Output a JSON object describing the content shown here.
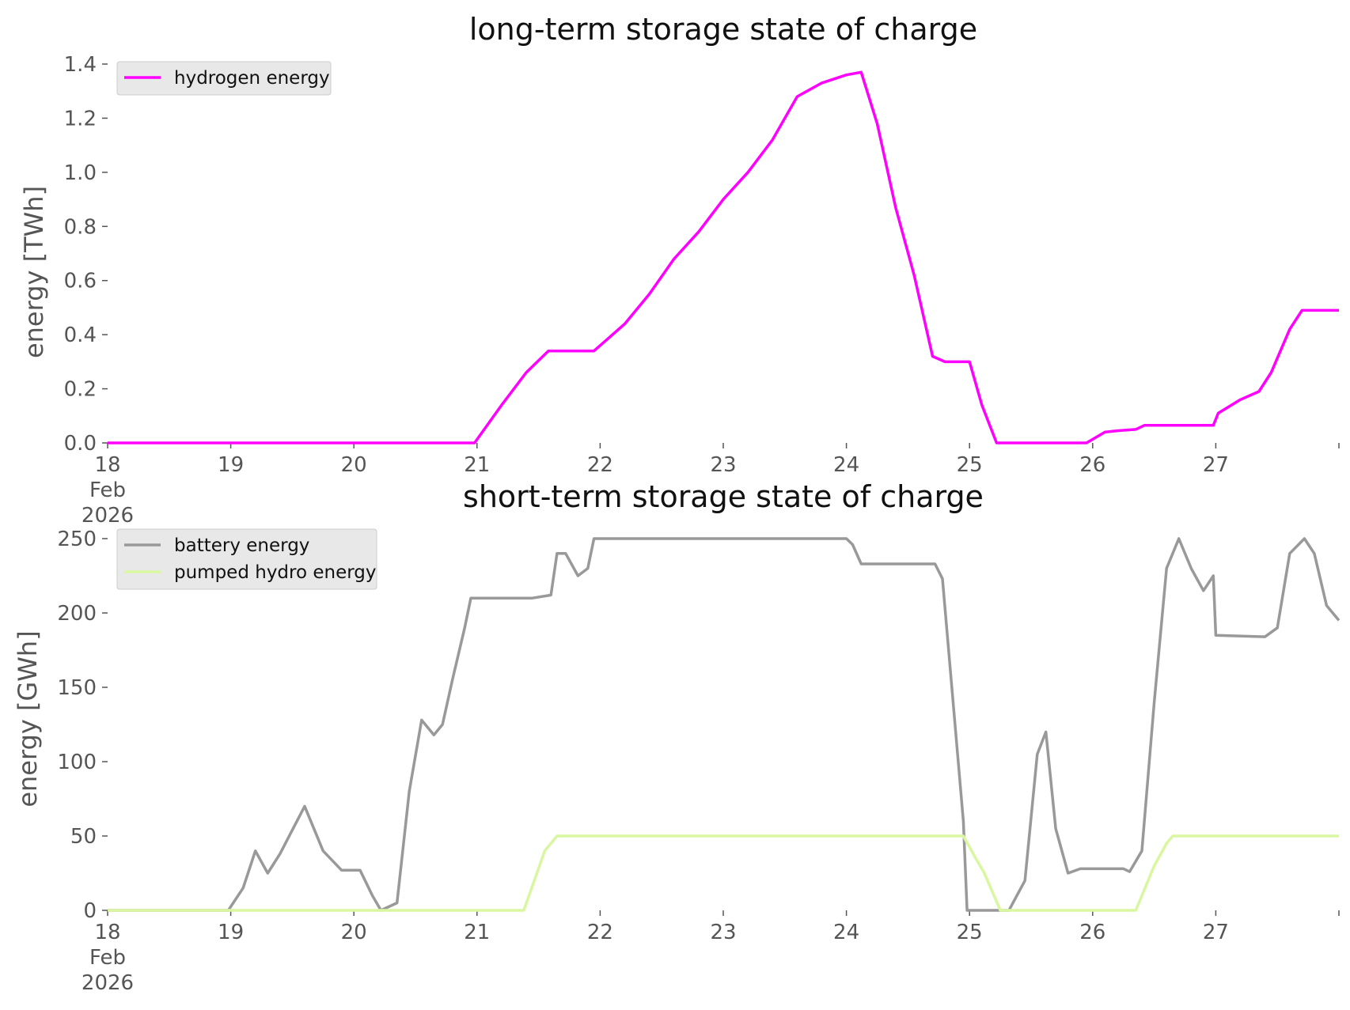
{
  "chart_data": [
    {
      "type": "line",
      "title": "long-term storage state of charge",
      "ylabel": "energy [TWh]",
      "xlabel": "",
      "xlim": [
        18,
        28
      ],
      "ylim": [
        0,
        1.4
      ],
      "x_tick_labels": [
        "18\nFeb\n2026",
        "19",
        "20",
        "21",
        "22",
        "23",
        "24",
        "25",
        "26",
        "27"
      ],
      "y_tick_labels": [
        "0.0",
        "0.2",
        "0.4",
        "0.6",
        "0.8",
        "1.0",
        "1.2",
        "1.4"
      ],
      "legend_position": "top-left",
      "series": [
        {
          "name": "hydrogen energy",
          "color": "#ff00ff",
          "x": [
            18,
            20.98,
            21.2,
            21.4,
            21.58,
            21.95,
            22.2,
            22.4,
            22.6,
            22.8,
            23.0,
            23.2,
            23.4,
            23.6,
            23.8,
            24.0,
            24.12,
            24.25,
            24.4,
            24.55,
            24.7,
            24.8,
            25.0,
            25.1,
            25.22,
            25.95,
            26.1,
            26.2,
            26.35,
            26.42,
            26.7,
            26.98,
            27.02,
            27.2,
            27.35,
            27.45,
            27.6,
            27.7,
            28.0
          ],
          "y": [
            0,
            0,
            0.14,
            0.26,
            0.34,
            0.34,
            0.44,
            0.55,
            0.68,
            0.78,
            0.9,
            1.0,
            1.12,
            1.28,
            1.33,
            1.36,
            1.37,
            1.18,
            0.87,
            0.62,
            0.32,
            0.3,
            0.3,
            0.14,
            0,
            0,
            0.04,
            0.045,
            0.05,
            0.065,
            0.065,
            0.065,
            0.11,
            0.16,
            0.19,
            0.26,
            0.42,
            0.49,
            0.49
          ]
        }
      ]
    },
    {
      "type": "line",
      "title": "short-term storage state of charge",
      "ylabel": "energy [GWh]",
      "xlabel": "",
      "xlim": [
        18,
        28
      ],
      "ylim": [
        0,
        250
      ],
      "x_tick_labels": [
        "18\nFeb\n2026",
        "19",
        "20",
        "21",
        "22",
        "23",
        "24",
        "25",
        "26",
        "27"
      ],
      "y_tick_labels": [
        "0",
        "50",
        "100",
        "150",
        "200",
        "250"
      ],
      "legend_position": "top-left",
      "series": [
        {
          "name": "battery energy",
          "color": "#999999",
          "x": [
            18,
            18.98,
            19.1,
            19.2,
            19.3,
            19.4,
            19.6,
            19.75,
            19.9,
            20.05,
            20.15,
            20.22,
            20.35,
            20.45,
            20.55,
            20.65,
            20.72,
            20.8,
            20.9,
            20.95,
            21.0,
            21.45,
            21.6,
            21.65,
            21.72,
            21.82,
            21.9,
            21.95,
            22.0,
            23.0,
            24.0,
            24.05,
            24.12,
            24.72,
            24.78,
            24.95,
            24.98,
            25.32,
            25.45,
            25.55,
            25.62,
            25.7,
            25.8,
            25.9,
            25.98,
            26.25,
            26.3,
            26.4,
            26.5,
            26.6,
            26.7,
            26.8,
            26.9,
            26.98,
            27.0,
            27.4,
            27.5,
            27.6,
            27.72,
            27.8,
            27.9,
            28.0
          ],
          "y": [
            0,
            0,
            15,
            40,
            25,
            38,
            70,
            40,
            27,
            27,
            10,
            0,
            5,
            80,
            128,
            118,
            125,
            155,
            190,
            210,
            210,
            210,
            212,
            240,
            240,
            225,
            230,
            250,
            250,
            250,
            250,
            246,
            233,
            233,
            223,
            60,
            0,
            0,
            20,
            105,
            120,
            55,
            25,
            28,
            28,
            28,
            26,
            40,
            140,
            230,
            250,
            230,
            215,
            225,
            185,
            184,
            190,
            240,
            250,
            240,
            205,
            195
          ]
        },
        {
          "name": "pumped hydro energy",
          "color": "#d9f7a0",
          "x": [
            18,
            21.38,
            21.55,
            21.65,
            22.0,
            23.0,
            24.0,
            24.95,
            25.05,
            25.12,
            25.25,
            25.32,
            26.35,
            26.5,
            26.6,
            26.65,
            27.0,
            28.0
          ],
          "y": [
            0,
            0,
            40,
            50,
            50,
            50,
            50,
            50,
            35,
            25,
            0,
            0,
            0,
            30,
            45,
            50,
            50,
            50
          ]
        }
      ]
    }
  ]
}
